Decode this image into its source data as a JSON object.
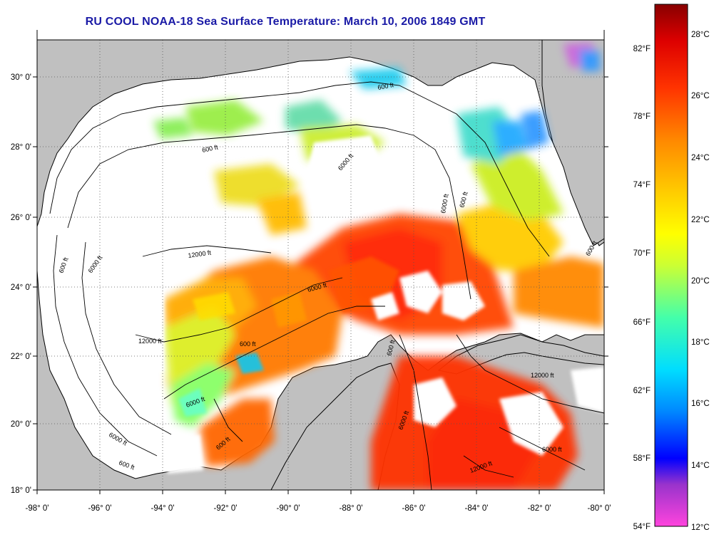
{
  "title": "RU COOL  NOAA-18  Sea Surface Temperature:  March 10, 2006 1849 GMT",
  "map": {
    "lon_range": [
      -98,
      -80
    ],
    "lat_range": [
      18,
      31
    ],
    "lon_ticks": [
      "-98° 0'",
      "-96° 0'",
      "-94° 0'",
      "-92° 0'",
      "-90° 0'",
      "-88° 0'",
      "-86° 0'",
      "-84° 0'",
      "-82° 0'",
      "-80° 0'"
    ],
    "lat_ticks": [
      "18° 0'",
      "20° 0'",
      "22° 0'",
      "24° 0'",
      "26° 0'",
      "28° 0'",
      "30° 0'"
    ],
    "grid": "dotted",
    "land_color": "#c0c0c0",
    "cloud_color": "#ffffff",
    "contour_labels": [
      "600 ft",
      "600 ft",
      "6000 ft",
      "12000 ft",
      "6000 ft",
      "600 ft",
      "12000 ft",
      "6000 ft",
      "600 ft",
      "6000 ft",
      "600 ft",
      "6000 ft",
      "600 ft",
      "6000 ft",
      "600 ft",
      "6000 ft",
      "600 ft",
      "12000 ft",
      "6000 ft",
      "600 ft",
      "12000 ft"
    ]
  },
  "colorbar": {
    "celsius_labels": [
      "28°C",
      "26°C",
      "24°C",
      "22°C",
      "20°C",
      "18°C",
      "16°C",
      "14°C",
      "12°C"
    ],
    "fahrenheit_labels": [
      "82°F",
      "78°F",
      "74°F",
      "70°F",
      "66°F",
      "62°F",
      "58°F",
      "54°F"
    ],
    "colors": [
      "#ff33cc",
      "#9933cc",
      "#0000ff",
      "#0099ff",
      "#00ffff",
      "#66ff99",
      "#ccff33",
      "#ffff00",
      "#ffcc00",
      "#ff8800",
      "#ff3300",
      "#cc0000",
      "#990000"
    ]
  }
}
